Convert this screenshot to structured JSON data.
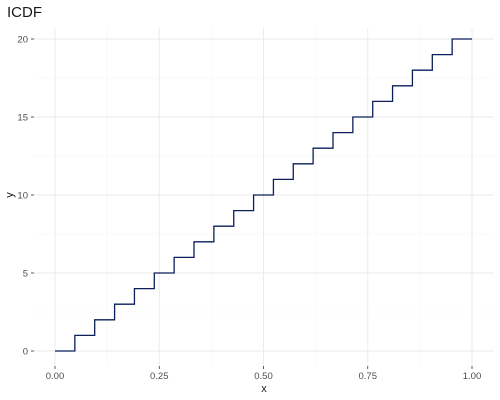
{
  "chart_data": {
    "type": "line",
    "title": "ICDF",
    "xlabel": "x",
    "ylabel": "y",
    "xlim": [
      0,
      1
    ],
    "ylim": [
      0,
      20
    ],
    "x_ticks": [
      0,
      0.25,
      0.5,
      0.75,
      1
    ],
    "x_tick_labels": [
      "0.00",
      "0.25",
      "0.50",
      "0.75",
      "1.00"
    ],
    "y_ticks": [
      0,
      5,
      10,
      15,
      20
    ],
    "y_tick_labels": [
      "0",
      "5",
      "10",
      "15",
      "20"
    ],
    "grid": true,
    "series": [
      {
        "step": "post",
        "color": "#0a1f5c",
        "x": [
          0,
          0.0476,
          0.0952,
          0.1429,
          0.1905,
          0.2381,
          0.2857,
          0.3333,
          0.381,
          0.4286,
          0.4762,
          0.5238,
          0.5714,
          0.619,
          0.6667,
          0.7143,
          0.7619,
          0.8095,
          0.8571,
          0.9048,
          0.9524,
          1.0
        ],
        "y": [
          0,
          1,
          2,
          3,
          4,
          5,
          6,
          7,
          8,
          9,
          10,
          11,
          12,
          13,
          14,
          15,
          16,
          17,
          18,
          19,
          20,
          20
        ]
      }
    ]
  }
}
